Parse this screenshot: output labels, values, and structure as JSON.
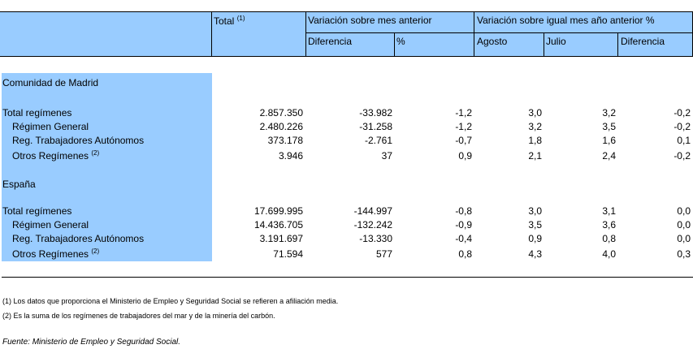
{
  "header": {
    "total": "Total",
    "total_note": "(1)",
    "var_mes": "Variación sobre mes anterior",
    "var_anio": "Variación sobre igual mes año anterior %",
    "diferencia": "Diferencia",
    "pct": "%",
    "agosto": "Agosto",
    "julio": "Julio",
    "diferencia2": "Diferencia"
  },
  "sections": [
    {
      "title": "Comunidad de Madrid",
      "rows": [
        {
          "label": "Total regímenes",
          "note": "",
          "total": "2.857.350",
          "dif": "-33.982",
          "pct": "-1,2",
          "agosto": "3,0",
          "julio": "3,2",
          "dif2": "-0,2"
        },
        {
          "label": "Régimen General",
          "note": "",
          "total": "2.480.226",
          "dif": "-31.258",
          "pct": "-1,2",
          "agosto": "3,2",
          "julio": "3,5",
          "dif2": "-0,2"
        },
        {
          "label": "Reg. Trabajadores Autónomos",
          "note": "",
          "total": "373.178",
          "dif": "-2.761",
          "pct": "-0,7",
          "agosto": "1,8",
          "julio": "1,6",
          "dif2": "0,1"
        },
        {
          "label": "Otros Regímenes",
          "note": "(2)",
          "total": "3.946",
          "dif": "37",
          "pct": "0,9",
          "agosto": "2,1",
          "julio": "2,4",
          "dif2": "-0,2"
        }
      ]
    },
    {
      "title": "España",
      "rows": [
        {
          "label": "Total regímenes",
          "note": "",
          "total": "17.699.995",
          "dif": "-144.997",
          "pct": "-0,8",
          "agosto": "3,0",
          "julio": "3,1",
          "dif2": "0,0"
        },
        {
          "label": "Régimen General",
          "note": "",
          "total": "14.436.705",
          "dif": "-132.242",
          "pct": "-0,9",
          "agosto": "3,5",
          "julio": "3,6",
          "dif2": "0,0"
        },
        {
          "label": "Reg. Trabajadores Autónomos",
          "note": "",
          "total": "3.191.697",
          "dif": "-13.330",
          "pct": "-0,4",
          "agosto": "0,9",
          "julio": "0,8",
          "dif2": "0,0"
        },
        {
          "label": "Otros Regímenes",
          "note": "(2)",
          "total": "71.594",
          "dif": "577",
          "pct": "0,8",
          "agosto": "4,3",
          "julio": "4,0",
          "dif2": "0,3"
        }
      ]
    }
  ],
  "footnotes": [
    "(1) Los datos que proporciona el Ministerio de Empleo y Seguridad Social se refieren a afiliación media.",
    "(2) Es la suma de los regímenes de trabajadores del mar y de la minería del carbón."
  ],
  "source": "Fuente: Ministerio de Empleo y Seguridad Social."
}
